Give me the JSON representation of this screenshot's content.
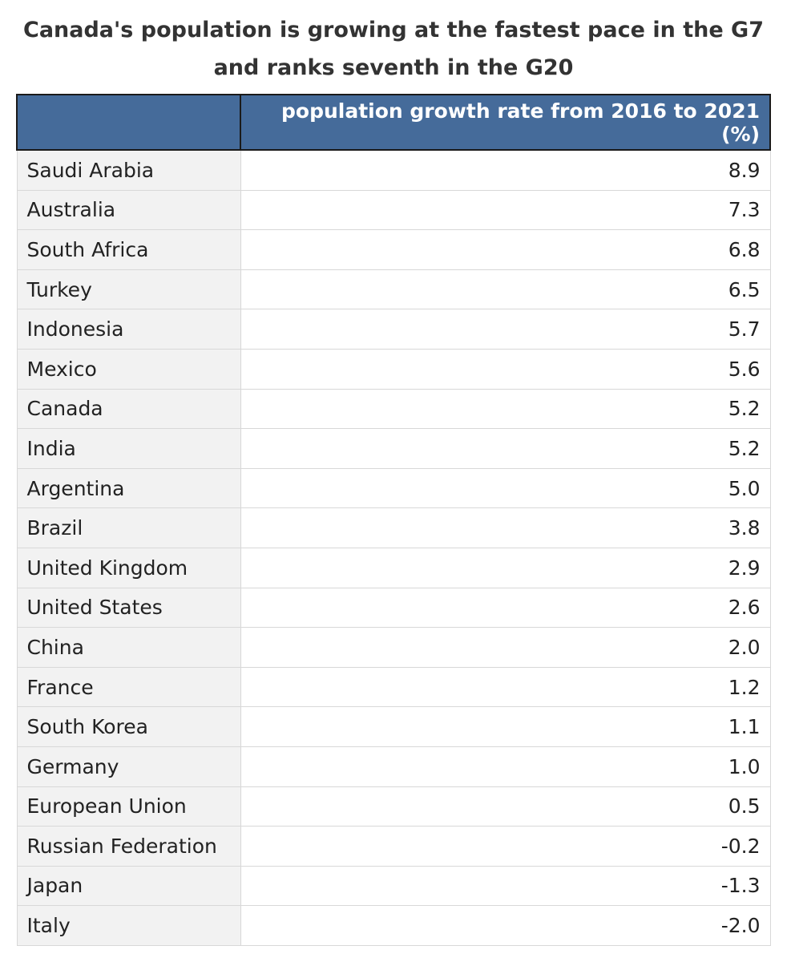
{
  "chart_data": {
    "type": "table",
    "title": "Canada's population is growing at the fastest pace in the G7 and ranks seventh in the G20",
    "header_color": "#456b9a",
    "columns": [
      "",
      "population growth rate from 2016 to 2021 (%)"
    ],
    "rows": [
      {
        "country": "Saudi Arabia",
        "value": "8.9"
      },
      {
        "country": "Australia",
        "value": "7.3"
      },
      {
        "country": "South Africa",
        "value": "6.8"
      },
      {
        "country": "Turkey",
        "value": "6.5"
      },
      {
        "country": "Indonesia",
        "value": "5.7"
      },
      {
        "country": "Mexico",
        "value": "5.6"
      },
      {
        "country": "Canada",
        "value": "5.2"
      },
      {
        "country": "India",
        "value": "5.2"
      },
      {
        "country": "Argentina",
        "value": "5.0"
      },
      {
        "country": "Brazil",
        "value": "3.8"
      },
      {
        "country": "United Kingdom",
        "value": "2.9"
      },
      {
        "country": "United States",
        "value": "2.6"
      },
      {
        "country": "China",
        "value": "2.0"
      },
      {
        "country": "France",
        "value": "1.2"
      },
      {
        "country": "South Korea",
        "value": "1.1"
      },
      {
        "country": "Germany",
        "value": "1.0"
      },
      {
        "country": "European Union",
        "value": "0.5"
      },
      {
        "country": "Russian Federation",
        "value": "-0.2"
      },
      {
        "country": "Japan",
        "value": "-1.3"
      },
      {
        "country": "Italy",
        "value": "-2.0"
      }
    ]
  }
}
